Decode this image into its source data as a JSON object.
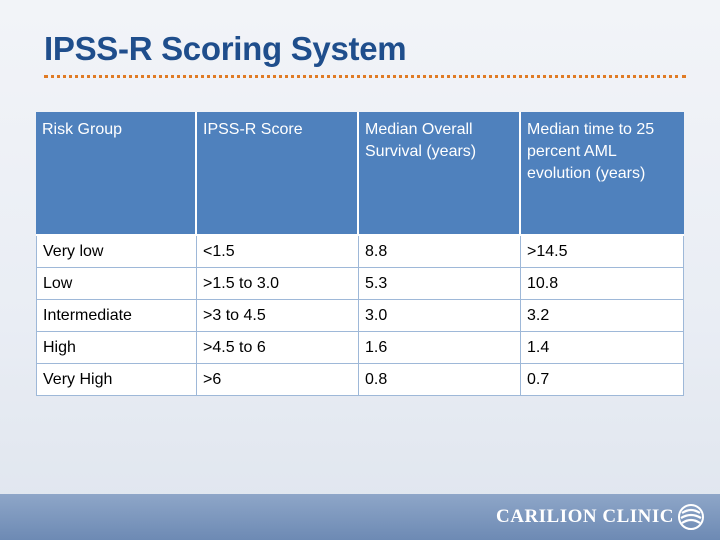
{
  "slide": {
    "title": "IPSS-R Scoring System"
  },
  "table": {
    "headers": [
      "Risk Group",
      "IPSS-R Score",
      "Median Overall Survival (years)",
      "Median time to 25 percent AML evolution (years)"
    ],
    "rows": [
      [
        "Very low",
        "<1.5",
        "8.8",
        ">14.5"
      ],
      [
        "Low",
        ">1.5 to 3.0",
        "5.3",
        "10.8"
      ],
      [
        "Intermediate",
        ">3 to 4.5",
        "3.0",
        "3.2"
      ],
      [
        "High",
        ">4.5 to 6",
        "1.6",
        "1.4"
      ],
      [
        "Very High",
        ">6",
        "0.8",
        "0.7"
      ]
    ]
  },
  "footer": {
    "brand": "CARILION CLINIC",
    "logo_icon": "carilion-clinic-logo-icon"
  },
  "colors": {
    "title": "#1f4e8c",
    "rule": "#e07b25",
    "header_bg": "#4f81bd",
    "footer_bg": "#7b96bd"
  }
}
